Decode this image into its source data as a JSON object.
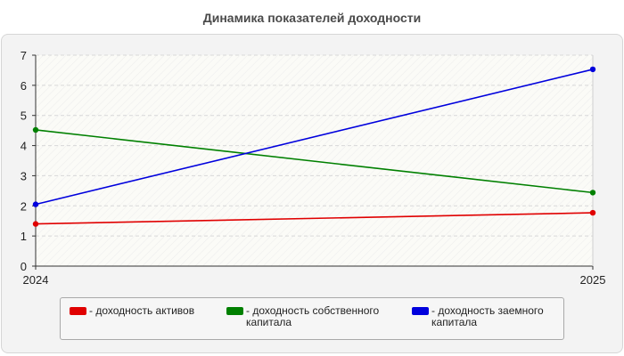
{
  "chart_data": {
    "type": "line",
    "title": "Динамика показателей доходности",
    "x": [
      "2024",
      "2025"
    ],
    "ylim": [
      0,
      7
    ],
    "yticks": [
      "0",
      "1",
      "2",
      "3",
      "4",
      "5",
      "6",
      "7"
    ],
    "grid": true,
    "legend_position": "bottom",
    "series": [
      {
        "name": "- доходность активов",
        "values": [
          1.4,
          1.77
        ],
        "color": "#e00000"
      },
      {
        "name": "- доходность собственного капитала",
        "values": [
          4.52,
          2.44
        ],
        "color": "#008000"
      },
      {
        "name": "- доходность заемного капитала",
        "values": [
          2.05,
          6.53
        ],
        "color": "#0000dd"
      }
    ]
  }
}
